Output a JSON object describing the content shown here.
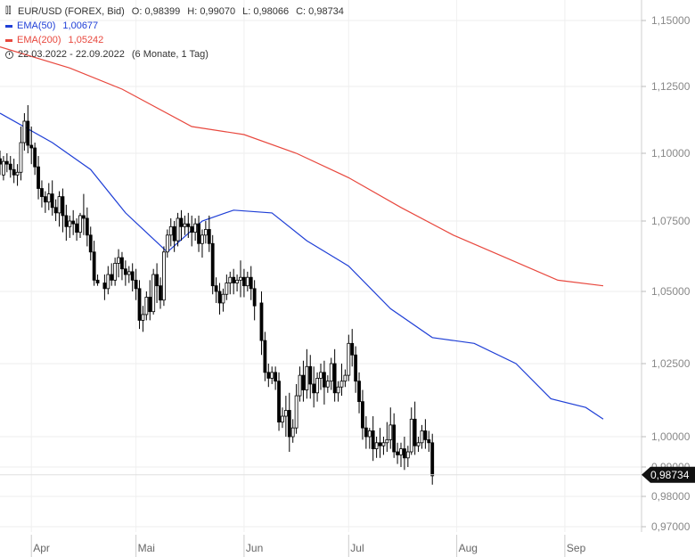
{
  "legend": {
    "instrument": "EUR/USD (FOREX, Bid)",
    "ohlc": {
      "o_label": "O:",
      "o": "0,98399",
      "h_label": "H:",
      "h": "0,99070",
      "l_label": "L:",
      "l": "0,98066",
      "c_label": "C:",
      "c": "0,98734"
    },
    "ema50": {
      "label": "EMA(50)",
      "value": "1,00677",
      "color": "#1f3fd6"
    },
    "ema200": {
      "label": "EMA(200)",
      "value": "1,05242",
      "color": "#e8483e"
    },
    "range": "22.03.2022 - 22.09.2022",
    "period": "(6 Monate, 1 Tag)",
    "chart_icon": "candlestick-icon",
    "clock_icon": "clock-icon"
  },
  "chart_data": {
    "type": "candlestick",
    "title": "",
    "x_ticks": [
      {
        "label": "Apr",
        "day": 9
      },
      {
        "label": "Mai",
        "day": 39
      },
      {
        "label": "Jun",
        "day": 70
      },
      {
        "label": "Jul",
        "day": 100
      },
      {
        "label": "Aug",
        "day": 131
      },
      {
        "label": "Sep",
        "day": 162
      }
    ],
    "x_range": [
      0,
      184
    ],
    "y_ticks": [
      "0,97000",
      "0,98000",
      "0,99000",
      "1,00000",
      "1,02500",
      "1,05000",
      "1,07500",
      "1,10000",
      "1,12500",
      "1,15000"
    ],
    "y_tick_values": [
      0.97,
      0.98,
      0.99,
      1.0,
      1.025,
      1.05,
      1.075,
      1.1,
      1.125,
      1.15
    ],
    "ylim": [
      0.965,
      1.157
    ],
    "grid": true,
    "last_price": {
      "label": "0,98734",
      "value": 0.98734
    },
    "ema50": [
      [
        0,
        1.115
      ],
      [
        15,
        1.104
      ],
      [
        26,
        1.094
      ],
      [
        36,
        1.078
      ],
      [
        48,
        1.064
      ],
      [
        58,
        1.075
      ],
      [
        67,
        1.079
      ],
      [
        78,
        1.078
      ],
      [
        88,
        1.068
      ],
      [
        100,
        1.059
      ],
      [
        112,
        1.044
      ],
      [
        124,
        1.034
      ],
      [
        136,
        1.032
      ],
      [
        148,
        1.025
      ],
      [
        158,
        1.013
      ],
      [
        168,
        1.01
      ],
      [
        173,
        1.006
      ]
    ],
    "ema200": [
      [
        0,
        1.14
      ],
      [
        20,
        1.132
      ],
      [
        35,
        1.124
      ],
      [
        55,
        1.11
      ],
      [
        70,
        1.107
      ],
      [
        85,
        1.1
      ],
      [
        100,
        1.091
      ],
      [
        115,
        1.08
      ],
      [
        130,
        1.07
      ],
      [
        145,
        1.062
      ],
      [
        160,
        1.054
      ],
      [
        173,
        1.052
      ]
    ],
    "candles": [
      [
        0,
        1.098,
        1.101,
        1.096,
        1.092
      ],
      [
        1,
        1.092,
        1.099,
        1.097,
        1.09
      ],
      [
        2,
        1.097,
        1.1,
        1.096,
        1.093
      ],
      [
        3,
        1.096,
        1.099,
        1.094,
        1.091
      ],
      [
        4,
        1.094,
        1.098,
        1.092,
        1.089
      ],
      [
        5,
        1.092,
        1.096,
        1.093,
        1.088
      ],
      [
        6,
        1.093,
        1.11,
        1.104,
        1.09
      ],
      [
        7,
        1.104,
        1.115,
        1.112,
        1.101
      ],
      [
        8,
        1.112,
        1.118,
        1.103,
        1.1
      ],
      [
        9,
        1.103,
        1.11,
        1.102,
        1.096
      ],
      [
        10,
        1.102,
        1.104,
        1.095,
        1.092
      ],
      [
        11,
        1.095,
        1.099,
        1.087,
        1.083
      ],
      [
        12,
        1.087,
        1.09,
        1.084,
        1.08
      ],
      [
        13,
        1.084,
        1.086,
        1.082,
        1.078
      ],
      [
        14,
        1.082,
        1.089,
        1.085,
        1.079
      ],
      [
        15,
        1.085,
        1.09,
        1.08,
        1.077
      ],
      [
        16,
        1.08,
        1.083,
        1.078,
        1.075
      ],
      [
        17,
        1.078,
        1.086,
        1.084,
        1.073
      ],
      [
        18,
        1.084,
        1.087,
        1.077,
        1.071
      ],
      [
        19,
        1.077,
        1.081,
        1.073,
        1.068
      ],
      [
        20,
        1.073,
        1.077,
        1.075,
        1.069
      ],
      [
        21,
        1.075,
        1.079,
        1.074,
        1.07
      ],
      [
        22,
        1.074,
        1.076,
        1.071,
        1.068
      ],
      [
        23,
        1.071,
        1.078,
        1.077,
        1.069
      ],
      [
        24,
        1.077,
        1.085,
        1.076,
        1.07
      ],
      [
        25,
        1.076,
        1.08,
        1.07,
        1.066
      ],
      [
        26,
        1.07,
        1.073,
        1.064,
        1.061
      ],
      [
        27,
        1.064,
        1.068,
        1.054,
        1.052
      ],
      [
        28,
        1.054,
        1.056,
        1.053,
        1.052
      ],
      [
        30,
        1.053,
        1.056,
        1.051,
        1.047
      ],
      [
        31,
        1.051,
        1.059,
        1.056,
        1.049
      ],
      [
        32,
        1.056,
        1.06,
        1.054,
        1.052
      ],
      [
        33,
        1.054,
        1.062,
        1.06,
        1.052
      ],
      [
        34,
        1.06,
        1.065,
        1.062,
        1.055
      ],
      [
        35,
        1.062,
        1.064,
        1.058,
        1.054
      ],
      [
        36,
        1.058,
        1.061,
        1.056,
        1.052
      ],
      [
        37,
        1.056,
        1.059,
        1.057,
        1.053
      ],
      [
        38,
        1.057,
        1.06,
        1.054,
        1.05
      ],
      [
        39,
        1.054,
        1.058,
        1.051,
        1.047
      ],
      [
        40,
        1.051,
        1.054,
        1.04,
        1.037
      ],
      [
        41,
        1.04,
        1.045,
        1.042,
        1.036
      ],
      [
        42,
        1.042,
        1.05,
        1.048,
        1.04
      ],
      [
        43,
        1.048,
        1.054,
        1.043,
        1.04
      ],
      [
        44,
        1.043,
        1.058,
        1.056,
        1.042
      ],
      [
        45,
        1.056,
        1.06,
        1.052,
        1.046
      ],
      [
        46,
        1.052,
        1.055,
        1.047,
        1.044
      ],
      [
        47,
        1.047,
        1.066,
        1.064,
        1.045
      ],
      [
        48,
        1.064,
        1.072,
        1.07,
        1.062
      ],
      [
        49,
        1.07,
        1.076,
        1.073,
        1.066
      ],
      [
        50,
        1.073,
        1.075,
        1.068,
        1.064
      ],
      [
        51,
        1.068,
        1.078,
        1.076,
        1.066
      ],
      [
        52,
        1.076,
        1.079,
        1.073,
        1.068
      ],
      [
        53,
        1.073,
        1.077,
        1.074,
        1.07
      ],
      [
        54,
        1.074,
        1.078,
        1.073,
        1.069
      ],
      [
        55,
        1.073,
        1.077,
        1.071,
        1.066
      ],
      [
        56,
        1.071,
        1.076,
        1.074,
        1.068
      ],
      [
        57,
        1.074,
        1.077,
        1.067,
        1.064
      ],
      [
        58,
        1.067,
        1.072,
        1.07,
        1.062
      ],
      [
        59,
        1.07,
        1.075,
        1.072,
        1.067
      ],
      [
        60,
        1.072,
        1.077,
        1.067,
        1.064
      ],
      [
        61,
        1.067,
        1.07,
        1.052,
        1.049
      ],
      [
        62,
        1.052,
        1.055,
        1.05,
        1.046
      ],
      [
        63,
        1.05,
        1.053,
        1.046,
        1.042
      ],
      [
        64,
        1.046,
        1.051,
        1.049,
        1.043
      ],
      [
        65,
        1.049,
        1.056,
        1.053,
        1.047
      ],
      [
        66,
        1.053,
        1.057,
        1.055,
        1.049
      ],
      [
        67,
        1.055,
        1.058,
        1.053,
        1.049
      ],
      [
        68,
        1.053,
        1.056,
        1.054,
        1.05
      ],
      [
        69,
        1.054,
        1.061,
        1.055,
        1.048
      ],
      [
        70,
        1.055,
        1.058,
        1.052,
        1.048
      ],
      [
        71,
        1.052,
        1.057,
        1.055,
        1.05
      ],
      [
        72,
        1.055,
        1.059,
        1.051,
        1.047
      ],
      [
        73,
        1.051,
        1.054,
        1.045,
        1.04
      ],
      [
        75,
        1.046,
        1.05,
        1.033,
        1.028
      ],
      [
        76,
        1.033,
        1.036,
        1.022,
        1.019
      ],
      [
        77,
        1.022,
        1.025,
        1.02,
        1.017
      ],
      [
        78,
        1.02,
        1.024,
        1.022,
        1.018
      ],
      [
        79,
        1.022,
        1.024,
        1.019,
        1.016
      ],
      [
        80,
        1.019,
        1.022,
        1.005,
        1.002
      ],
      [
        81,
        1.005,
        1.01,
        1.007,
        1.003
      ],
      [
        82,
        1.007,
        1.014,
        1.009,
        1.0
      ],
      [
        83,
        1.009,
        1.015,
        1.0,
        0.995
      ],
      [
        84,
        1.0,
        1.006,
        1.003,
        0.998
      ],
      [
        85,
        1.003,
        1.018,
        1.014,
        1.001
      ],
      [
        86,
        1.014,
        1.024,
        1.021,
        1.012
      ],
      [
        87,
        1.021,
        1.026,
        1.016,
        1.012
      ],
      [
        88,
        1.016,
        1.03,
        1.024,
        1.013
      ],
      [
        89,
        1.024,
        1.028,
        1.018,
        1.013
      ],
      [
        90,
        1.018,
        1.024,
        1.015,
        1.01
      ],
      [
        91,
        1.015,
        1.022,
        1.02,
        1.012
      ],
      [
        92,
        1.02,
        1.025,
        1.022,
        1.016
      ],
      [
        93,
        1.022,
        1.026,
        1.017,
        1.011
      ],
      [
        94,
        1.017,
        1.021,
        1.019,
        1.015
      ],
      [
        95,
        1.019,
        1.027,
        1.025,
        1.016
      ],
      [
        96,
        1.025,
        1.03,
        1.015,
        1.012
      ],
      [
        97,
        1.015,
        1.019,
        1.017,
        1.012
      ],
      [
        98,
        1.017,
        1.025,
        1.019,
        1.014
      ],
      [
        99,
        1.019,
        1.023,
        1.021,
        1.017
      ],
      [
        100,
        1.021,
        1.035,
        1.032,
        1.019
      ],
      [
        101,
        1.032,
        1.037,
        1.028,
        1.024
      ],
      [
        102,
        1.028,
        1.031,
        1.019,
        1.015
      ],
      [
        103,
        1.019,
        1.022,
        1.012,
        1.008
      ],
      [
        104,
        1.012,
        1.016,
        1.003,
        0.999
      ],
      [
        105,
        1.003,
        1.007,
        1.0,
        0.996
      ],
      [
        106,
        1.0,
        1.003,
        1.002,
        0.996
      ],
      [
        107,
        1.002,
        1.007,
        0.996,
        0.992
      ],
      [
        108,
        0.996,
        1.0,
        0.998,
        0.993
      ],
      [
        109,
        0.998,
        1.003,
        0.997,
        0.993
      ],
      [
        110,
        0.997,
        1.0,
        0.998,
        0.994
      ],
      [
        111,
        0.998,
        1.005,
        0.999,
        0.995
      ],
      [
        112,
        0.999,
        1.01,
        1.004,
        0.996
      ],
      [
        113,
        1.004,
        1.008,
        0.995,
        0.993
      ],
      [
        114,
        0.995,
        0.998,
        0.994,
        0.991
      ],
      [
        115,
        0.994,
        0.998,
        0.996,
        0.99
      ],
      [
        116,
        0.996,
        1.0,
        0.993,
        0.989
      ],
      [
        117,
        0.993,
        0.997,
        0.995,
        0.99
      ],
      [
        118,
        0.995,
        1.01,
        1.006,
        0.994
      ],
      [
        119,
        1.006,
        1.012,
        0.997,
        0.994
      ],
      [
        120,
        0.997,
        1.0,
        0.998,
        0.995
      ],
      [
        121,
        0.998,
        1.004,
        1.002,
        0.996
      ],
      [
        122,
        1.002,
        1.006,
        0.999,
        0.996
      ],
      [
        123,
        0.999,
        1.002,
        0.998,
        0.995
      ],
      [
        124,
        0.998,
        1.001,
        0.987,
        0.984
      ]
    ]
  }
}
